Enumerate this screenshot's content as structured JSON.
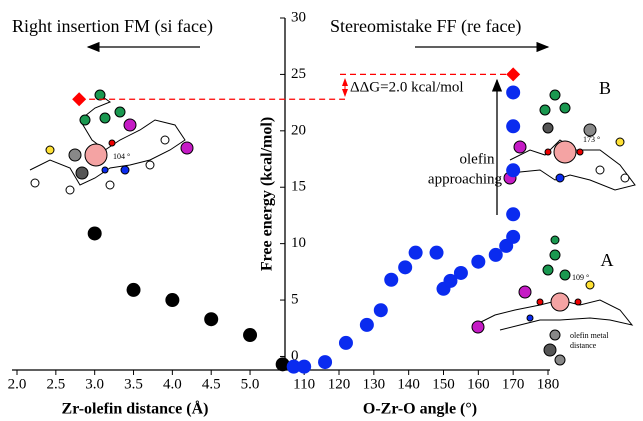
{
  "chart_data": {
    "type": "scatter",
    "ylabel": "Free energy (kcal/mol)",
    "ylim": [
      -1.2,
      30
    ],
    "yticks": [
      0,
      5,
      10,
      15,
      20,
      25,
      30
    ],
    "xlabel": "Zr-olefin distance (Å)",
    "xlim": [
      2.0,
      5.45
    ],
    "xticks": [
      {
        "value": 2,
        "label": "2.0"
      },
      {
        "value": 2.5,
        "label": "2.5"
      },
      {
        "value": 3,
        "label": "3.0"
      },
      {
        "value": 3.5,
        "label": "3.5"
      },
      {
        "value": 4,
        "label": "4.0"
      },
      {
        "value": 4.5,
        "label": "4.5"
      },
      {
        "value": 5,
        "label": "5.0"
      }
    ],
    "x2label": "O-Zr-O angle (°)",
    "x2lim": [
      104.5,
      180
    ],
    "x2ticks": [
      110,
      120,
      130,
      140,
      150,
      160,
      170,
      180
    ],
    "series": [
      {
        "color": "#000000",
        "marker": "circle",
        "axis": "x",
        "x": [
          3.0,
          3.5,
          4.0,
          4.5,
          5.0,
          5.42
        ],
        "values": [
          10.9,
          5.9,
          5.0,
          3.3,
          1.9,
          -0.7
        ]
      },
      {
        "color": "#0a2bef",
        "marker": "circle",
        "axis": "x2",
        "x": [
          107,
          110,
          116,
          122,
          128,
          132,
          135,
          139,
          142,
          148,
          150,
          152,
          155,
          160,
          165,
          168,
          170,
          170,
          170,
          170,
          170
        ],
        "values": [
          -0.9,
          -0.9,
          -0.5,
          1.2,
          2.8,
          4.1,
          6.8,
          7.9,
          9.2,
          9.2,
          6.0,
          6.7,
          7.4,
          8.4,
          9.0,
          9.8,
          10.6,
          12.6,
          16.5,
          20.4,
          23.4
        ]
      },
      {
        "color": "#ff0000",
        "marker": "diamond",
        "axis": "x",
        "x": [
          2.8
        ],
        "values": [
          22.8
        ]
      },
      {
        "color": "#ff0000",
        "marker": "diamond",
        "axis": "x2",
        "x": [
          170
        ],
        "values": [
          25.0
        ]
      }
    ],
    "annotations": [
      "Right insertion FM (si face)",
      "Stereomistake FF (re face)",
      "ΔΔG=2.0 kcal/mol",
      "B",
      "A",
      "olefin",
      "approaching",
      "104 °",
      "173 °",
      "109 °",
      "olefin metal",
      "distance"
    ]
  }
}
